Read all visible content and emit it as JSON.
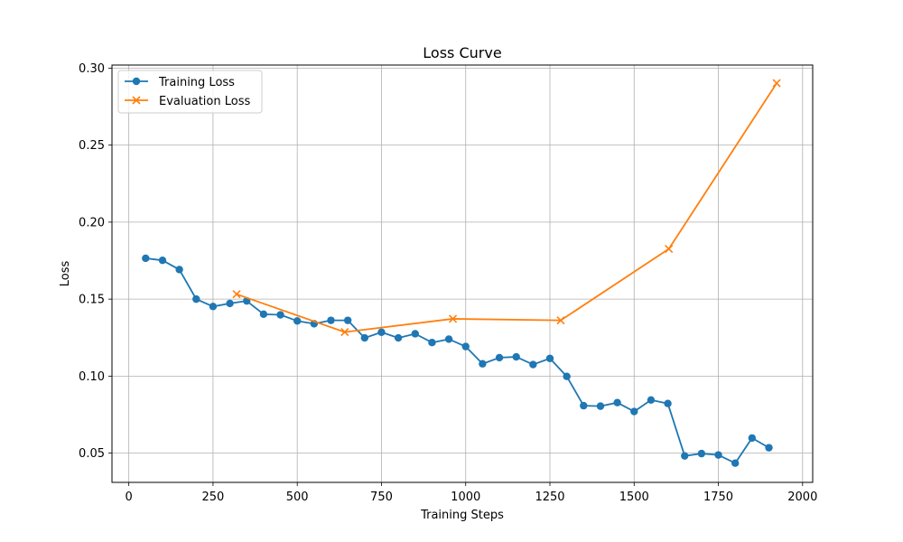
{
  "chart_data": {
    "type": "line",
    "title": "Loss Curve",
    "xlabel": "Training Steps",
    "ylabel": "Loss",
    "xlim": [
      -50,
      2030
    ],
    "ylim": [
      0.031,
      0.302
    ],
    "xticks": [
      0,
      250,
      500,
      750,
      1000,
      1250,
      1500,
      1750,
      2000
    ],
    "yticks": [
      0.05,
      0.1,
      0.15,
      0.2,
      0.25,
      0.3
    ],
    "xtick_labels": [
      "0",
      "250",
      "500",
      "750",
      "1000",
      "1250",
      "1500",
      "1750",
      "2000"
    ],
    "ytick_labels": [
      "0.05",
      "0.10",
      "0.15",
      "0.20",
      "0.25",
      "0.30"
    ],
    "grid": true,
    "legend": "top-left",
    "series": [
      {
        "name": "Training Loss",
        "color": "#1f77b4",
        "marker": "circle",
        "x": [
          50,
          100,
          150,
          200,
          250,
          300,
          350,
          400,
          450,
          500,
          550,
          600,
          650,
          700,
          750,
          800,
          850,
          900,
          950,
          1000,
          1050,
          1100,
          1150,
          1200,
          1250,
          1300,
          1350,
          1400,
          1450,
          1500,
          1550,
          1600,
          1650,
          1700,
          1750,
          1800,
          1850,
          1900
        ],
        "y": [
          0.1765,
          0.1752,
          0.1692,
          0.15,
          0.1452,
          0.1472,
          0.1488,
          0.1402,
          0.1398,
          0.1358,
          0.134,
          0.1362,
          0.1362,
          0.1248,
          0.1285,
          0.1248,
          0.1275,
          0.1218,
          0.124,
          0.1192,
          0.108,
          0.112,
          0.1125,
          0.1075,
          0.1115,
          0.0998,
          0.0808,
          0.0805,
          0.0828,
          0.077,
          0.0845,
          0.0822,
          0.0482,
          0.0497,
          0.0488,
          0.0435,
          0.0598,
          0.0535
        ]
      },
      {
        "name": "Evaluation Loss",
        "color": "#ff7f0e",
        "marker": "x",
        "x": [
          320,
          641,
          962,
          1282,
          1603,
          1923
        ],
        "y": [
          0.1532,
          0.1286,
          0.1372,
          0.1362,
          0.1826,
          0.2902
        ]
      }
    ]
  }
}
